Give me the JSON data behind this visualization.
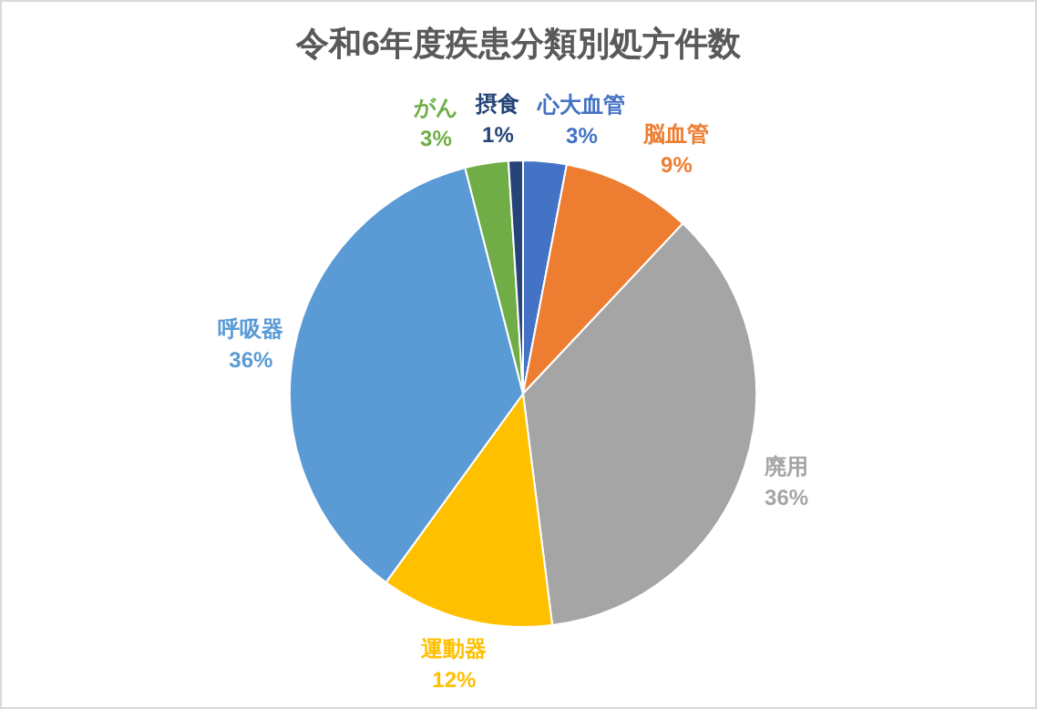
{
  "chart_data": {
    "type": "pie",
    "title": "令和6年度疾患分類別処方件数",
    "categories": [
      "心大血管",
      "脳血管",
      "廃用",
      "運動器",
      "呼吸器",
      "がん",
      "摂食"
    ],
    "values": [
      3,
      9,
      36,
      12,
      36,
      3,
      1
    ],
    "value_labels": [
      "3%",
      "9%",
      "36%",
      "12%",
      "36%",
      "3%",
      "1%"
    ],
    "colors": [
      "#4472c4",
      "#ed7d31",
      "#a5a5a5",
      "#ffc000",
      "#5b9bd5",
      "#70ad47",
      "#264478"
    ],
    "legend": false
  }
}
